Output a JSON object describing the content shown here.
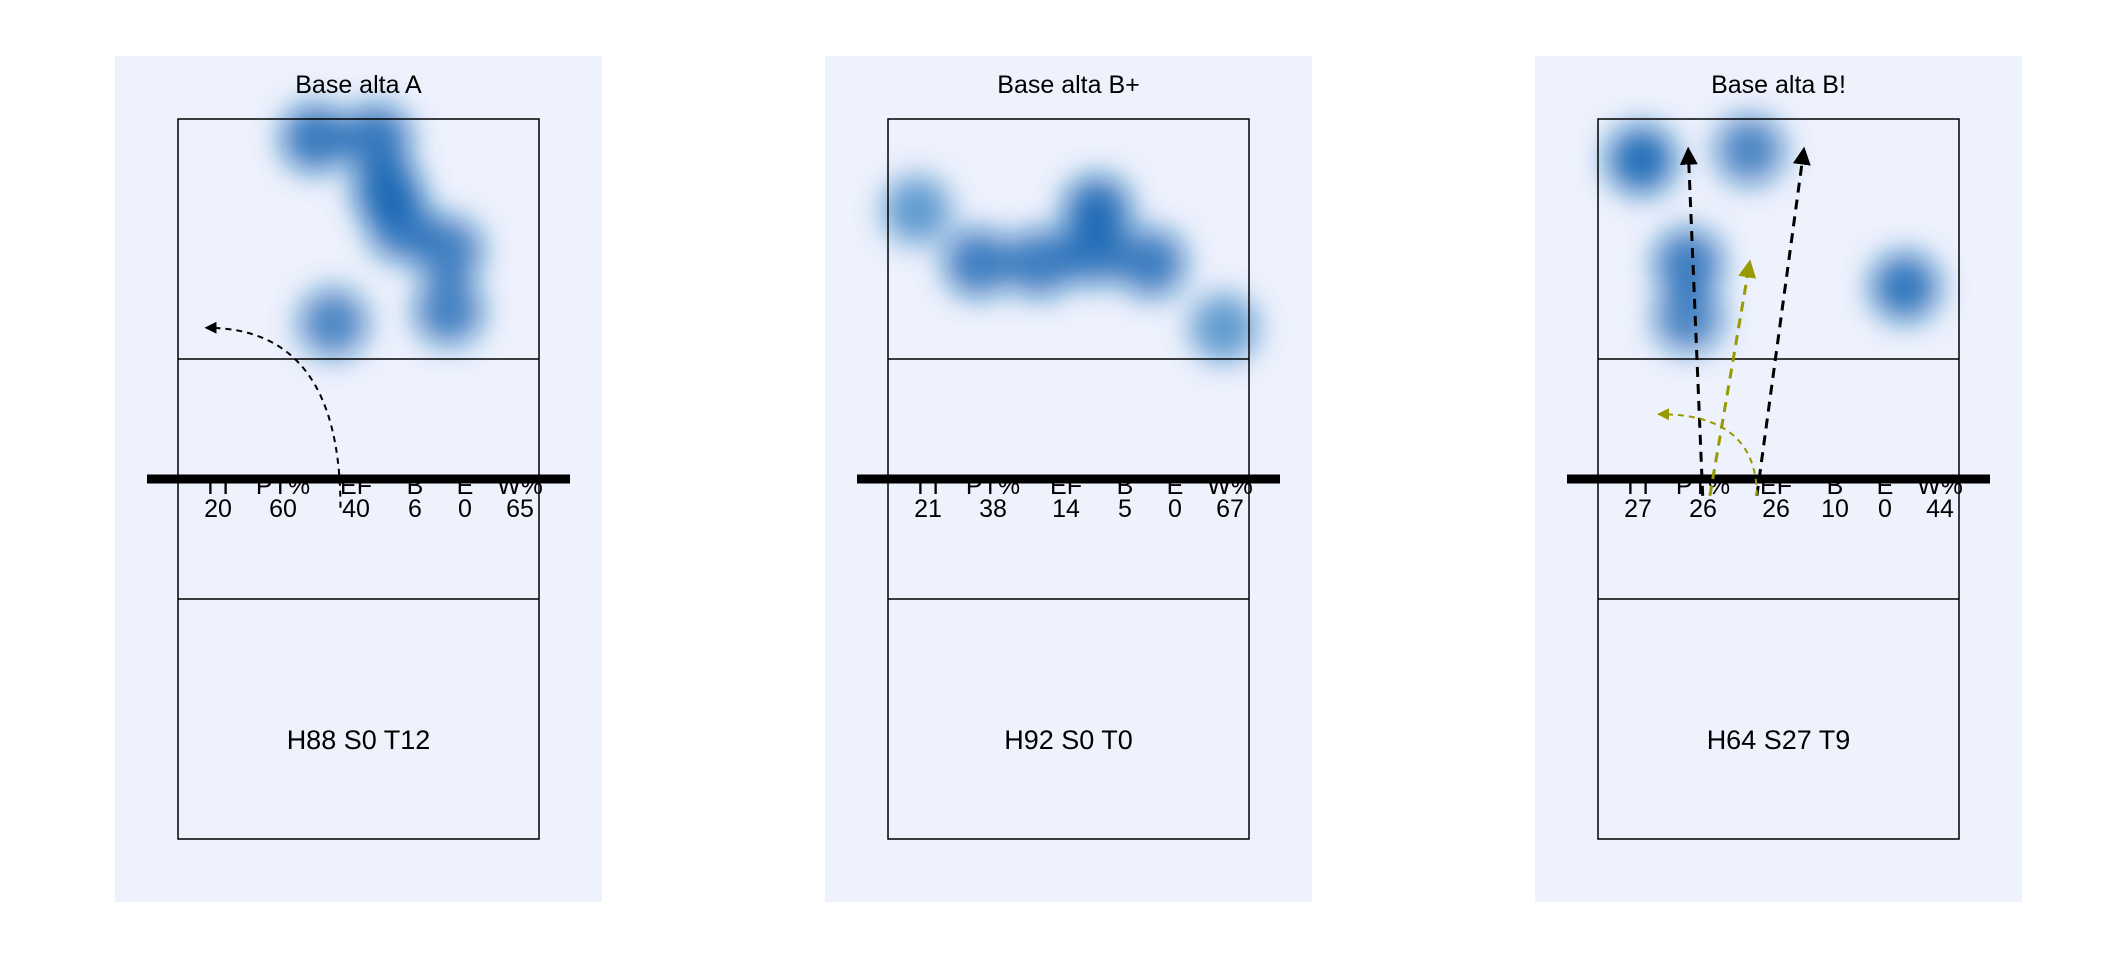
{
  "chart_data": [
    {
      "type": "heatmap",
      "title": "Base alta A",
      "stats": {
        "headers": [
          "TT",
          "PT%",
          "EF",
          "B",
          "E",
          "W%"
        ],
        "values": [
          "20",
          "60",
          "40",
          "6",
          "0",
          "65"
        ]
      },
      "footer": "H88 S0 T12",
      "heat_spots": [
        {
          "x": 0.38,
          "y": 0.08,
          "intensity": 0.85
        },
        {
          "x": 0.55,
          "y": 0.08,
          "intensity": 0.85
        },
        {
          "x": 0.58,
          "y": 0.3,
          "intensity": 1.0
        },
        {
          "x": 0.62,
          "y": 0.45,
          "intensity": 0.8
        },
        {
          "x": 0.75,
          "y": 0.55,
          "intensity": 0.75
        },
        {
          "x": 0.75,
          "y": 0.8,
          "intensity": 0.75
        },
        {
          "x": 0.43,
          "y": 0.85,
          "intensity": 0.7
        }
      ],
      "trajectories": [
        {
          "from": [
            0.45,
            1.62
          ],
          "to": [
            0.08,
            0.87
          ],
          "curved": true,
          "color": "#000000"
        }
      ]
    },
    {
      "type": "heatmap",
      "title": "Base alta B+",
      "stats": {
        "headers": [
          "TT",
          "PT%",
          "EF",
          "B",
          "E",
          "W%"
        ],
        "values": [
          "21",
          "38",
          "14",
          "5",
          "0",
          "67"
        ]
      },
      "footer": "H92 S0 T0",
      "heat_spots": [
        {
          "x": 0.08,
          "y": 0.38,
          "intensity": 0.45
        },
        {
          "x": 0.25,
          "y": 0.6,
          "intensity": 0.8
        },
        {
          "x": 0.42,
          "y": 0.6,
          "intensity": 0.8
        },
        {
          "x": 0.57,
          "y": 0.55,
          "intensity": 0.85
        },
        {
          "x": 0.58,
          "y": 0.38,
          "intensity": 0.95
        },
        {
          "x": 0.73,
          "y": 0.6,
          "intensity": 0.8
        },
        {
          "x": 0.93,
          "y": 0.87,
          "intensity": 0.45
        }
      ],
      "trajectories": []
    },
    {
      "type": "heatmap",
      "title": "Base alta B!",
      "stats": {
        "headers": [
          "TT",
          "PT%",
          "EF",
          "B",
          "E",
          "W%"
        ],
        "values": [
          "27",
          "26",
          "26",
          "10",
          "0",
          "44"
        ]
      },
      "footer": "H64 S27 T9",
      "heat_spots": [
        {
          "x": 0.12,
          "y": 0.17,
          "intensity": 1.0
        },
        {
          "x": 0.42,
          "y": 0.13,
          "intensity": 0.7
        },
        {
          "x": 0.25,
          "y": 0.6,
          "intensity": 0.8
        },
        {
          "x": 0.25,
          "y": 0.83,
          "intensity": 0.7
        },
        {
          "x": 0.85,
          "y": 0.7,
          "intensity": 0.9
        }
      ],
      "trajectories": [
        {
          "from": [
            0.29,
            1.57
          ],
          "to": [
            0.25,
            0.13
          ],
          "curved": false,
          "color": "#000000"
        },
        {
          "from": [
            0.44,
            1.57
          ],
          "to": [
            0.57,
            0.13
          ],
          "curved": false,
          "color": "#000000"
        },
        {
          "from": [
            0.31,
            1.57
          ],
          "to": [
            0.42,
            0.6
          ],
          "curved": false,
          "color": "#999900"
        },
        {
          "from": [
            0.44,
            1.57
          ],
          "to": [
            0.17,
            1.23
          ],
          "curved": true,
          "color": "#999900"
        }
      ]
    }
  ]
}
